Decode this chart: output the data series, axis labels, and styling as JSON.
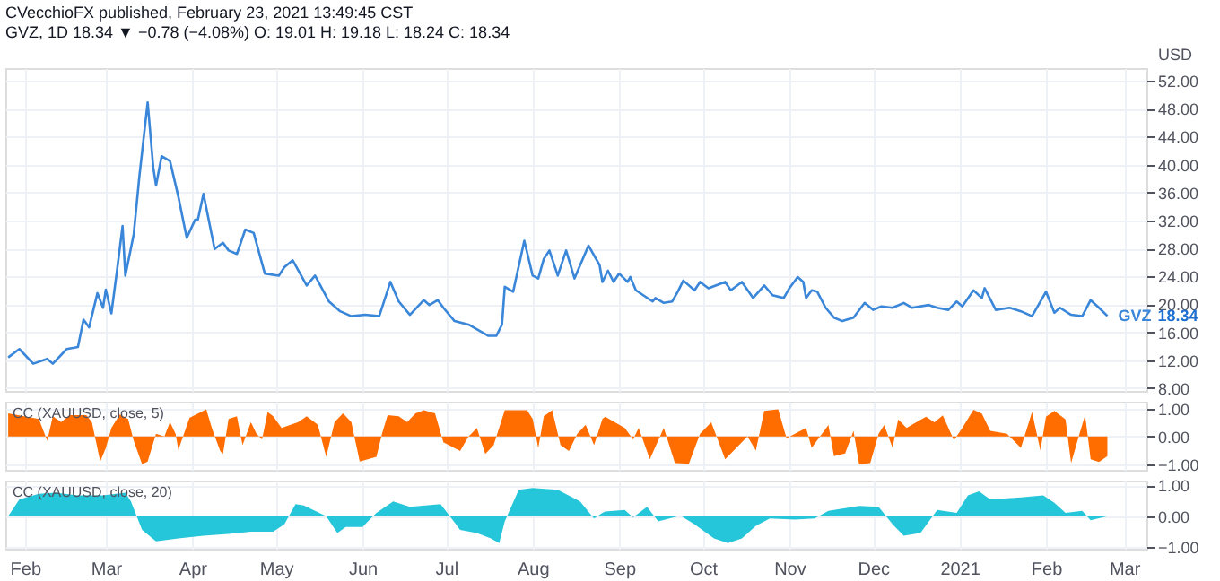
{
  "chart_data": [
    {
      "type": "line",
      "title": "CVecchioFX published, February 23, 2021 13:49:45 CST",
      "subtitle": "GVZ, 1D  18.34 ▼ −0.78 (−4.08%) O: 19.01 H: 19.18 L: 18.24 C: 18.34",
      "ylabel": "USD",
      "x": [
        "2020-01-26",
        "2020-01-30",
        "2020-02-04",
        "2020-02-09",
        "2020-02-11",
        "2020-02-16",
        "2020-02-20",
        "2020-02-22",
        "2020-02-24",
        "2020-02-27",
        "2020-02-29",
        "2020-03-01",
        "2020-03-03",
        "2020-03-05",
        "2020-03-07",
        "2020-03-08",
        "2020-03-11",
        "2020-03-13",
        "2020-03-16",
        "2020-03-18",
        "2020-03-19",
        "2020-03-21",
        "2020-03-24",
        "2020-03-27",
        "2020-03-30",
        "2020-04-02",
        "2020-04-03",
        "2020-04-05",
        "2020-04-09",
        "2020-04-12",
        "2020-04-14",
        "2020-04-17",
        "2020-04-20",
        "2020-04-23",
        "2020-04-27",
        "2020-05-02",
        "2020-05-04",
        "2020-05-07",
        "2020-05-12",
        "2020-05-15",
        "2020-05-20",
        "2020-05-24",
        "2020-05-28",
        "2020-06-02",
        "2020-06-07",
        "2020-06-11",
        "2020-06-14",
        "2020-06-18",
        "2020-06-23",
        "2020-06-25",
        "2020-06-28",
        "2020-06-30",
        "2020-07-04",
        "2020-07-09",
        "2020-07-16",
        "2020-07-19",
        "2020-07-21",
        "2020-07-22",
        "2020-07-25",
        "2020-07-29",
        "2020-08-01",
        "2020-08-03",
        "2020-08-05",
        "2020-08-07",
        "2020-08-10",
        "2020-08-13",
        "2020-08-16",
        "2020-08-21",
        "2020-08-25",
        "2020-08-26",
        "2020-08-28",
        "2020-08-30",
        "2020-09-01",
        "2020-09-04",
        "2020-09-05",
        "2020-09-07",
        "2020-09-13",
        "2020-09-14",
        "2020-09-17",
        "2020-09-20",
        "2020-09-22",
        "2020-09-24",
        "2020-09-28",
        "2020-09-30",
        "2020-10-03",
        "2020-10-09",
        "2020-10-11",
        "2020-10-15",
        "2020-10-19",
        "2020-10-23",
        "2020-10-26",
        "2020-10-30",
        "2020-11-01",
        "2020-11-04",
        "2020-11-06",
        "2020-11-07",
        "2020-11-09",
        "2020-11-11",
        "2020-11-14",
        "2020-11-17",
        "2020-11-20",
        "2020-11-24",
        "2020-11-28",
        "2020-12-01",
        "2020-12-04",
        "2020-12-08",
        "2020-12-12",
        "2020-12-15",
        "2020-12-21",
        "2020-12-24",
        "2020-12-28",
        "2020-12-31",
        "2021-01-02",
        "2021-01-06",
        "2021-01-09",
        "2021-01-10",
        "2021-01-14",
        "2021-01-19",
        "2021-01-23",
        "2021-01-27",
        "2021-02-01",
        "2021-02-04",
        "2021-02-06",
        "2021-02-10",
        "2021-02-14",
        "2021-02-17",
        "2021-02-20",
        "2021-02-23"
      ],
      "series": [
        {
          "name": "GVZ",
          "color": "#3a86d9",
          "values": [
            12.4,
            13.6,
            11.5,
            12.2,
            11.5,
            13.6,
            13.9,
            17.8,
            16.7,
            21.6,
            19.5,
            22.1,
            18.7,
            24.8,
            31.2,
            24.1,
            30.0,
            38.2,
            48.9,
            39.6,
            37.0,
            41.2,
            40.5,
            35.4,
            29.5,
            32.1,
            32.1,
            35.8,
            27.9,
            28.8,
            27.7,
            27.2,
            30.7,
            30.2,
            24.4,
            24.1,
            25.3,
            26.3,
            22.7,
            24.1,
            20.4,
            19.0,
            18.3,
            18.5,
            18.3,
            23.2,
            20.4,
            18.5,
            20.6,
            19.9,
            20.6,
            19.5,
            17.6,
            17.1,
            15.5,
            15.5,
            17.1,
            22.5,
            21.8,
            29.1,
            24.1,
            23.7,
            26.5,
            27.7,
            24.1,
            27.7,
            23.7,
            28.4,
            25.6,
            23.2,
            24.8,
            23.2,
            24.4,
            23.2,
            23.9,
            22.0,
            20.4,
            20.9,
            20.2,
            20.4,
            21.8,
            23.4,
            22.0,
            23.2,
            22.3,
            23.2,
            22.0,
            23.2,
            20.9,
            22.7,
            21.3,
            20.9,
            22.3,
            23.9,
            23.2,
            20.9,
            22.0,
            21.8,
            19.5,
            18.1,
            17.6,
            18.1,
            20.2,
            19.2,
            19.7,
            19.5,
            20.2,
            19.5,
            19.9,
            19.5,
            19.2,
            20.4,
            19.7,
            22.0,
            20.9,
            22.3,
            19.2,
            19.5,
            19.0,
            18.3,
            21.8,
            18.8,
            19.5,
            18.5,
            18.3,
            20.6,
            19.5,
            18.34
          ]
        }
      ],
      "xlim": [
        "2020-01-25",
        "2021-03-09"
      ],
      "ylim": [
        7.6,
        53.8
      ],
      "yticks": [
        {
          "value": 8,
          "label": "8.00"
        },
        {
          "value": 12,
          "label": "12.00"
        },
        {
          "value": 16,
          "label": "16.00"
        },
        {
          "value": 20,
          "label": "20.00"
        },
        {
          "value": 24,
          "label": "24.00"
        },
        {
          "value": 28,
          "label": "28.00"
        },
        {
          "value": 32,
          "label": "32.00"
        },
        {
          "value": 36,
          "label": "36.00"
        },
        {
          "value": 40,
          "label": "40.00"
        },
        {
          "value": 44,
          "label": "44.00"
        },
        {
          "value": 48,
          "label": "48.00"
        },
        {
          "value": 52,
          "label": "52.00"
        }
      ],
      "grid": true,
      "tick_labels": "y",
      "line_style": "solid",
      "marker": "none",
      "annotations": [
        "18.34"
      ]
    },
    {
      "type": "area",
      "title": "CC (XAUUSD, close, 5)",
      "x": [
        "2020-01-26",
        "2020-02-06",
        "2020-02-09",
        "2020-02-11",
        "2020-02-14",
        "2020-02-17",
        "2020-02-23",
        "2020-02-25",
        "2020-02-28",
        "2020-03-01",
        "2020-03-03",
        "2020-03-06",
        "2020-03-09",
        "2020-03-11",
        "2020-03-14",
        "2020-03-16",
        "2020-03-19",
        "2020-03-22",
        "2020-03-24",
        "2020-03-26",
        "2020-03-27",
        "2020-03-31",
        "2020-04-06",
        "2020-04-08",
        "2020-04-11",
        "2020-04-12",
        "2020-04-14",
        "2020-04-17",
        "2020-04-19",
        "2020-04-22",
        "2020-04-24",
        "2020-04-26",
        "2020-04-28",
        "2020-04-30",
        "2020-05-03",
        "2020-05-09",
        "2020-05-12",
        "2020-05-16",
        "2020-05-19",
        "2020-05-22",
        "2020-05-25",
        "2020-05-28",
        "2020-05-31",
        "2020-06-06",
        "2020-06-08",
        "2020-06-10",
        "2020-06-14",
        "2020-06-17",
        "2020-06-20",
        "2020-06-23",
        "2020-06-27",
        "2020-06-30",
        "2020-07-06",
        "2020-07-09",
        "2020-07-10",
        "2020-07-12",
        "2020-07-15",
        "2020-07-18",
        "2020-07-22",
        "2020-07-30",
        "2020-08-01",
        "2020-08-03",
        "2020-08-05",
        "2020-08-08",
        "2020-08-11",
        "2020-08-14",
        "2020-08-17",
        "2020-08-20",
        "2020-08-23",
        "2020-08-26",
        "2020-08-27",
        "2020-09-03",
        "2020-09-06",
        "2020-09-08",
        "2020-09-12",
        "2020-09-17",
        "2020-09-21",
        "2020-09-26",
        "2020-09-30",
        "2020-10-04",
        "2020-10-09",
        "2020-10-13",
        "2020-10-17",
        "2020-10-20",
        "2020-10-23",
        "2020-10-28",
        "2020-10-31",
        "2020-11-03",
        "2020-11-07",
        "2020-11-09",
        "2020-11-15",
        "2020-11-17",
        "2020-11-21",
        "2020-11-24",
        "2020-11-26",
        "2020-11-30",
        "2020-12-03",
        "2020-12-05",
        "2020-12-08",
        "2020-12-10",
        "2020-12-13",
        "2020-12-20",
        "2020-12-23",
        "2020-12-26",
        "2020-12-30",
        "2021-01-02",
        "2021-01-06",
        "2021-01-09",
        "2021-01-12",
        "2021-01-18",
        "2021-01-23",
        "2021-01-27",
        "2021-01-30",
        "2021-02-01",
        "2021-02-04",
        "2021-02-08",
        "2021-02-10",
        "2021-02-13",
        "2021-02-15",
        "2021-02-16",
        "2021-02-17",
        "2021-02-20",
        "2021-02-23"
      ],
      "series": [
        {
          "color": "#ff6d00",
          "values": [
            0.83,
            0.63,
            -0.15,
            0.73,
            0.52,
            0.77,
            0.77,
            0.52,
            -0.9,
            -0.42,
            0.31,
            0.79,
            0.63,
            -0.15,
            -1.0,
            -0.9,
            0.1,
            0,
            0.52,
            0.1,
            -0.48,
            0.67,
            0.98,
            0.31,
            -0.52,
            -0.63,
            0.63,
            0.73,
            -0.31,
            0.52,
            0.1,
            -0.1,
            0.88,
            0.73,
            0.31,
            0.52,
            0.73,
            0.42,
            -0.73,
            0.52,
            0.83,
            0.52,
            -0.9,
            -0.73,
            0.1,
            0.77,
            0.73,
            0.52,
            0.83,
            0.94,
            0.83,
            -0.21,
            -0.52,
            0,
            0.1,
            0.31,
            -0.63,
            -0.31,
            0.94,
            0.94,
            0.63,
            -0.42,
            0.73,
            0.94,
            -0.31,
            -0.52,
            0.1,
            0.42,
            -0.31,
            0.63,
            0.71,
            0.31,
            -0.1,
            0.31,
            -0.82,
            0.31,
            -0.96,
            -0.98,
            0.1,
            0.51,
            -0.82,
            -0.41,
            0,
            -0.51,
            0.92,
            0.98,
            -0.06,
            0.1,
            0.31,
            -0.41,
            0.41,
            -0.71,
            -0.61,
            0.2,
            -1.0,
            -0.96,
            0.1,
            0.41,
            -0.41,
            0.61,
            0.31,
            0.71,
            0.51,
            0.76,
            -0.14,
            0.31,
            0.96,
            0.82,
            0.2,
            0.1,
            -0.41,
            0.88,
            -0.51,
            0.71,
            0.92,
            0.61,
            -0.96,
            0.1,
            0.76,
            0,
            -0.82,
            -0.92,
            -0.71
          ]
        }
      ],
      "xlim": [
        "2020-01-25",
        "2021-03-09"
      ],
      "ylim": [
        -1.2,
        1.25
      ],
      "yticks": [
        {
          "value": -1,
          "label": "−1.00"
        },
        {
          "value": 0,
          "label": "0.00"
        },
        {
          "value": 1,
          "label": "1.00"
        }
      ],
      "grid": true,
      "tick_labels": "y"
    },
    {
      "type": "area",
      "title": "CC (XAUUSD, close, 20)",
      "x": [
        "2020-01-26",
        "2020-01-30",
        "2020-02-06",
        "2020-02-12",
        "2020-02-20",
        "2020-02-29",
        "2020-03-08",
        "2020-03-10",
        "2020-03-14",
        "2020-03-19",
        "2020-03-27",
        "2020-04-05",
        "2020-04-14",
        "2020-04-22",
        "2020-04-30",
        "2020-05-04",
        "2020-05-08",
        "2020-05-11",
        "2020-05-19",
        "2020-05-23",
        "2020-05-26",
        "2020-06-01",
        "2020-06-06",
        "2020-06-12",
        "2020-06-18",
        "2020-06-29",
        "2020-07-06",
        "2020-07-12",
        "2020-07-17",
        "2020-07-20",
        "2020-07-22",
        "2020-07-27",
        "2020-08-01",
        "2020-08-10",
        "2020-08-18",
        "2020-08-23",
        "2020-08-26",
        "2020-08-27",
        "2020-09-03",
        "2020-09-06",
        "2020-09-11",
        "2020-09-15",
        "2020-09-23",
        "2020-09-28",
        "2020-10-05",
        "2020-10-10",
        "2020-10-15",
        "2020-10-20",
        "2020-10-25",
        "2020-11-03",
        "2020-11-10",
        "2020-11-15",
        "2020-11-26",
        "2020-12-03",
        "2020-12-08",
        "2020-12-12",
        "2020-12-18",
        "2020-12-24",
        "2020-12-31",
        "2021-01-04",
        "2021-01-08",
        "2021-01-12",
        "2021-01-23",
        "2021-01-31",
        "2021-02-04",
        "2021-02-08",
        "2021-02-14",
        "2021-02-17",
        "2021-02-23"
      ],
      "series": [
        {
          "color": "#26c6da",
          "values": [
            0,
            0.54,
            0.72,
            0.76,
            0.67,
            0.67,
            0.76,
            0.48,
            -0.44,
            -0.81,
            -0.72,
            -0.63,
            -0.57,
            -0.5,
            -0.5,
            -0.26,
            0.39,
            0.35,
            0,
            -0.54,
            -0.35,
            -0.35,
            0.11,
            0.48,
            0.3,
            0.39,
            -0.44,
            -0.54,
            -0.72,
            -0.87,
            -0.17,
            0.85,
            0.91,
            0.85,
            0.48,
            -0.07,
            0.11,
            0.15,
            0.2,
            -0.04,
            0.3,
            -0.17,
            0.02,
            -0.26,
            -0.72,
            -0.87,
            -0.72,
            -0.31,
            -0.07,
            -0.11,
            -0.07,
            0.17,
            0.33,
            0.3,
            -0.26,
            -0.63,
            -0.54,
            0.2,
            0.11,
            0.67,
            0.8,
            0.54,
            0.61,
            0.67,
            0.43,
            0.11,
            0.17,
            -0.13,
            0
          ]
        }
      ],
      "xlim": [
        "2020-01-25",
        "2021-03-09"
      ],
      "xticks": [
        {
          "value": "2020-02-01",
          "label": "Feb"
        },
        {
          "value": "2020-03-01",
          "label": "Mar"
        },
        {
          "value": "2020-04-01",
          "label": "Apr"
        },
        {
          "value": "2020-05-01",
          "label": "May"
        },
        {
          "value": "2020-06-01",
          "label": "Jun"
        },
        {
          "value": "2020-07-01",
          "label": "Jul"
        },
        {
          "value": "2020-08-01",
          "label": "Aug"
        },
        {
          "value": "2020-09-01",
          "label": "Sep"
        },
        {
          "value": "2020-10-01",
          "label": "Oct"
        },
        {
          "value": "2020-11-01",
          "label": "Nov"
        },
        {
          "value": "2020-12-01",
          "label": "Dec"
        },
        {
          "value": "2021-01-01",
          "label": "2021"
        },
        {
          "value": "2021-02-01",
          "label": "Feb"
        },
        {
          "value": "2021-03-01",
          "label": "Mar"
        }
      ],
      "ylim": [
        -1.05,
        1.15
      ],
      "yticks": [
        {
          "value": -1,
          "label": "−1.00"
        },
        {
          "value": 0,
          "label": "0.00"
        },
        {
          "value": 1,
          "label": "1.00"
        }
      ],
      "grid": true
    }
  ]
}
